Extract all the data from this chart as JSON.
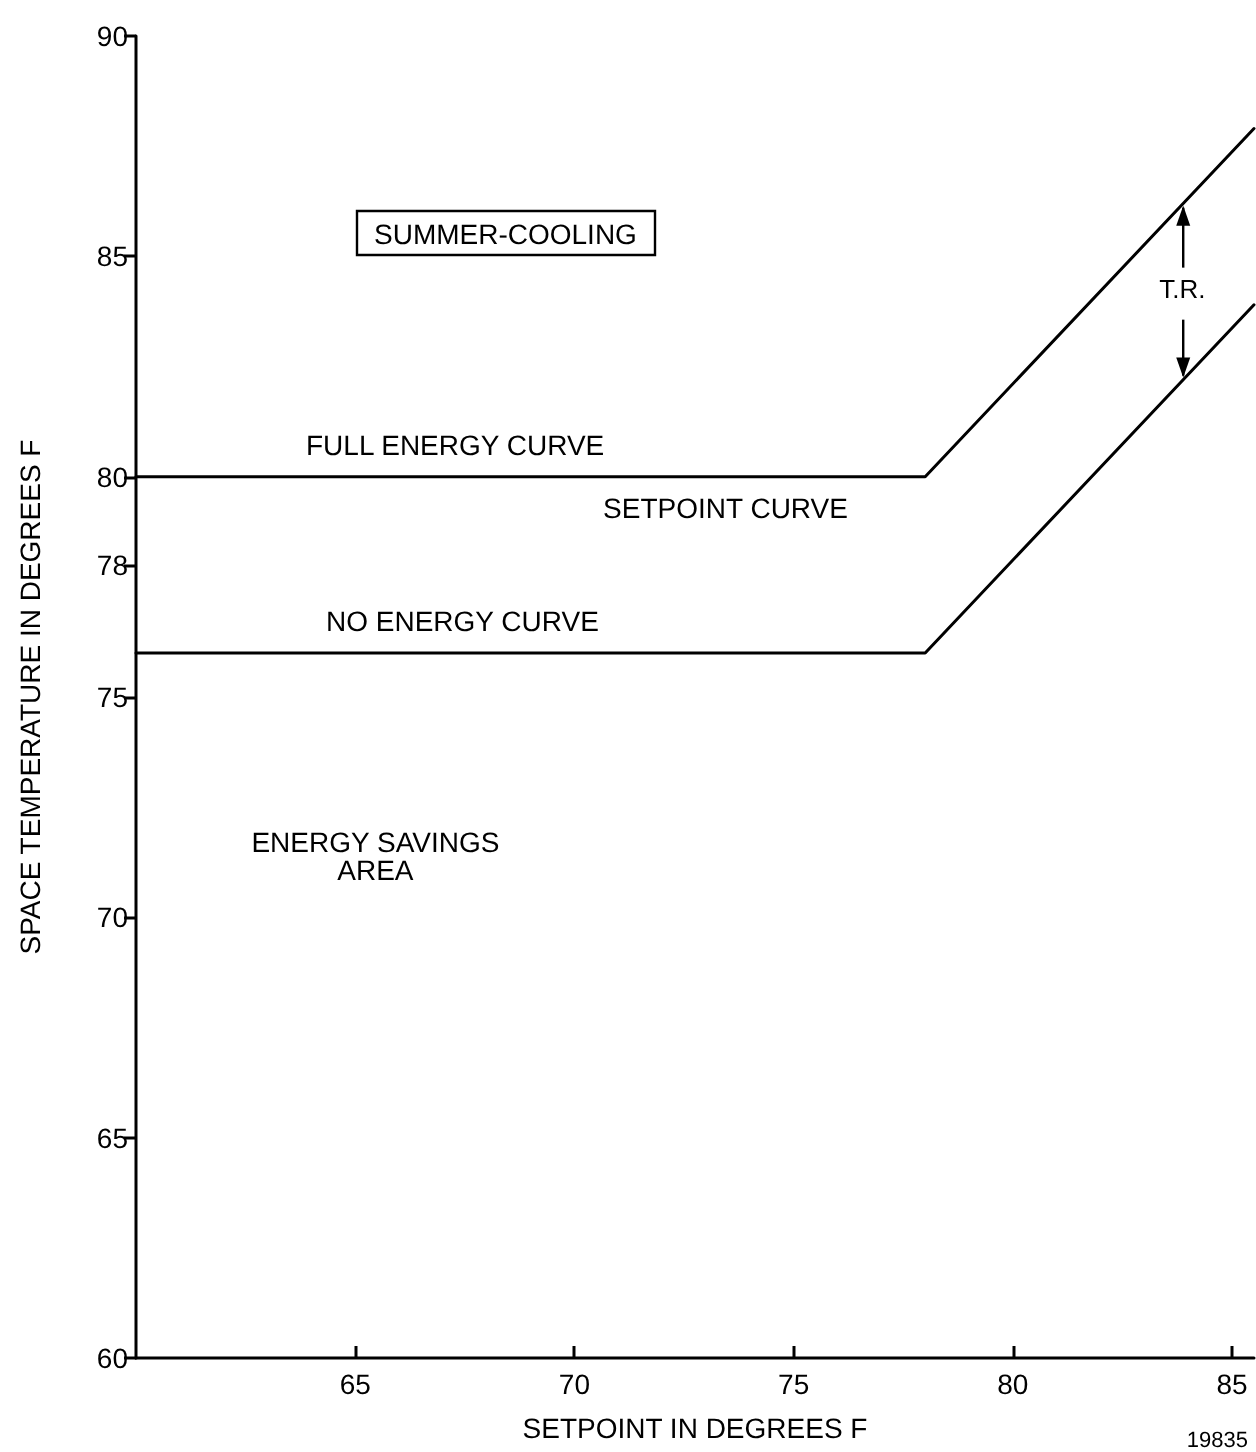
{
  "chart_data": {
    "type": "line",
    "title": "SUMMER-COOLING",
    "xlabel": "SETPOINT IN DEGREES F",
    "ylabel": "SPACE TEMPERATURE IN DEGREES F",
    "xlim": [
      60,
      85.5
    ],
    "xticks": [
      65,
      70,
      75,
      80,
      85
    ],
    "ylim": [
      60,
      90
    ],
    "yticks": [
      60,
      65,
      70,
      75,
      78,
      80,
      85,
      90
    ],
    "series": [
      {
        "name": "FULL ENERGY CURVE",
        "color": "#000000",
        "x": [
          60,
          78,
          85.5
        ],
        "values": [
          80,
          80,
          87.9
        ]
      },
      {
        "name": "NO ENERGY CURVE",
        "color": "#000000",
        "x": [
          60,
          78,
          85.5
        ],
        "values": [
          76,
          76,
          83.9
        ]
      }
    ],
    "annotations": [
      "SETPOINT CURVE",
      "ENERGY SAVINGS\nAREA",
      {
        "text": "T.R.",
        "x": 83.9,
        "y": 86.2
      },
      "19835"
    ],
    "grid": false,
    "legend": false,
    "marker": "none",
    "line_style": "solid"
  }
}
